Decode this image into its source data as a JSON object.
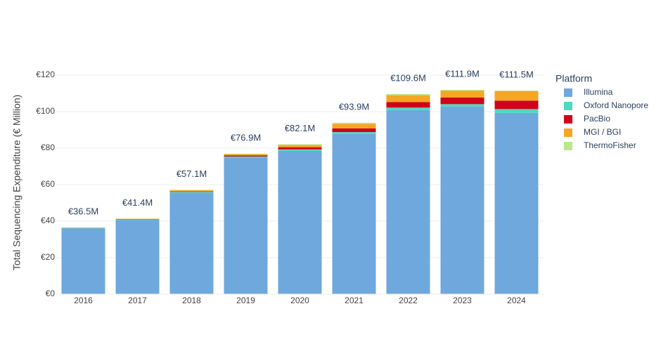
{
  "chart_data": {
    "type": "stacked_bar",
    "y_axis_label": "Total Sequencing Expenditure (€ Million)",
    "legend_title": "Platform",
    "categories": [
      "2016",
      "2017",
      "2018",
      "2019",
      "2020",
      "2021",
      "2022",
      "2023",
      "2024"
    ],
    "series": [
      {
        "name": "Illumina",
        "color": "#6fa8dc",
        "values": [
          36.0,
          40.6,
          55.5,
          74.8,
          78.5,
          87.8,
          100.8,
          102.8,
          99.3
        ]
      },
      {
        "name": "Oxford Nanopore",
        "color": "#4dd9bf",
        "values": [
          0.2,
          0.3,
          0.5,
          0.6,
          0.8,
          1.0,
          1.4,
          1.3,
          2.1
        ]
      },
      {
        "name": "PacBio",
        "color": "#d0021b",
        "values": [
          0.1,
          0.2,
          0.3,
          0.6,
          1.2,
          2.0,
          3.0,
          3.6,
          4.6
        ]
      },
      {
        "name": "MGI / BGI",
        "color": "#f5a623",
        "values": [
          0.1,
          0.2,
          0.6,
          0.7,
          1.2,
          2.5,
          3.8,
          3.8,
          5.3
        ]
      },
      {
        "name": "ThermoFisher",
        "color": "#b8e986",
        "values": [
          0.1,
          0.1,
          0.2,
          0.2,
          0.4,
          0.6,
          0.6,
          0.4,
          0.2
        ]
      }
    ],
    "totals": {
      "values": [
        36.5,
        41.4,
        57.1,
        76.9,
        82.1,
        93.9,
        109.6,
        111.9,
        111.5
      ],
      "value_labels": [
        "€36.5M",
        "€41.4M",
        "€57.1M",
        "€76.9M",
        "€82.1M",
        "€93.9M",
        "€109.6M",
        "€111.9M",
        "€111.5M"
      ]
    },
    "ylim": [
      0,
      120
    ],
    "yticks": [
      {
        "value": 0,
        "label": "€0"
      },
      {
        "value": 20,
        "label": "€20"
      },
      {
        "value": 40,
        "label": "€40"
      },
      {
        "value": 60,
        "label": "€60"
      },
      {
        "value": 80,
        "label": "€80"
      },
      {
        "value": 100,
        "label": "€100"
      },
      {
        "value": 120,
        "label": "€120"
      }
    ],
    "grid": true
  }
}
